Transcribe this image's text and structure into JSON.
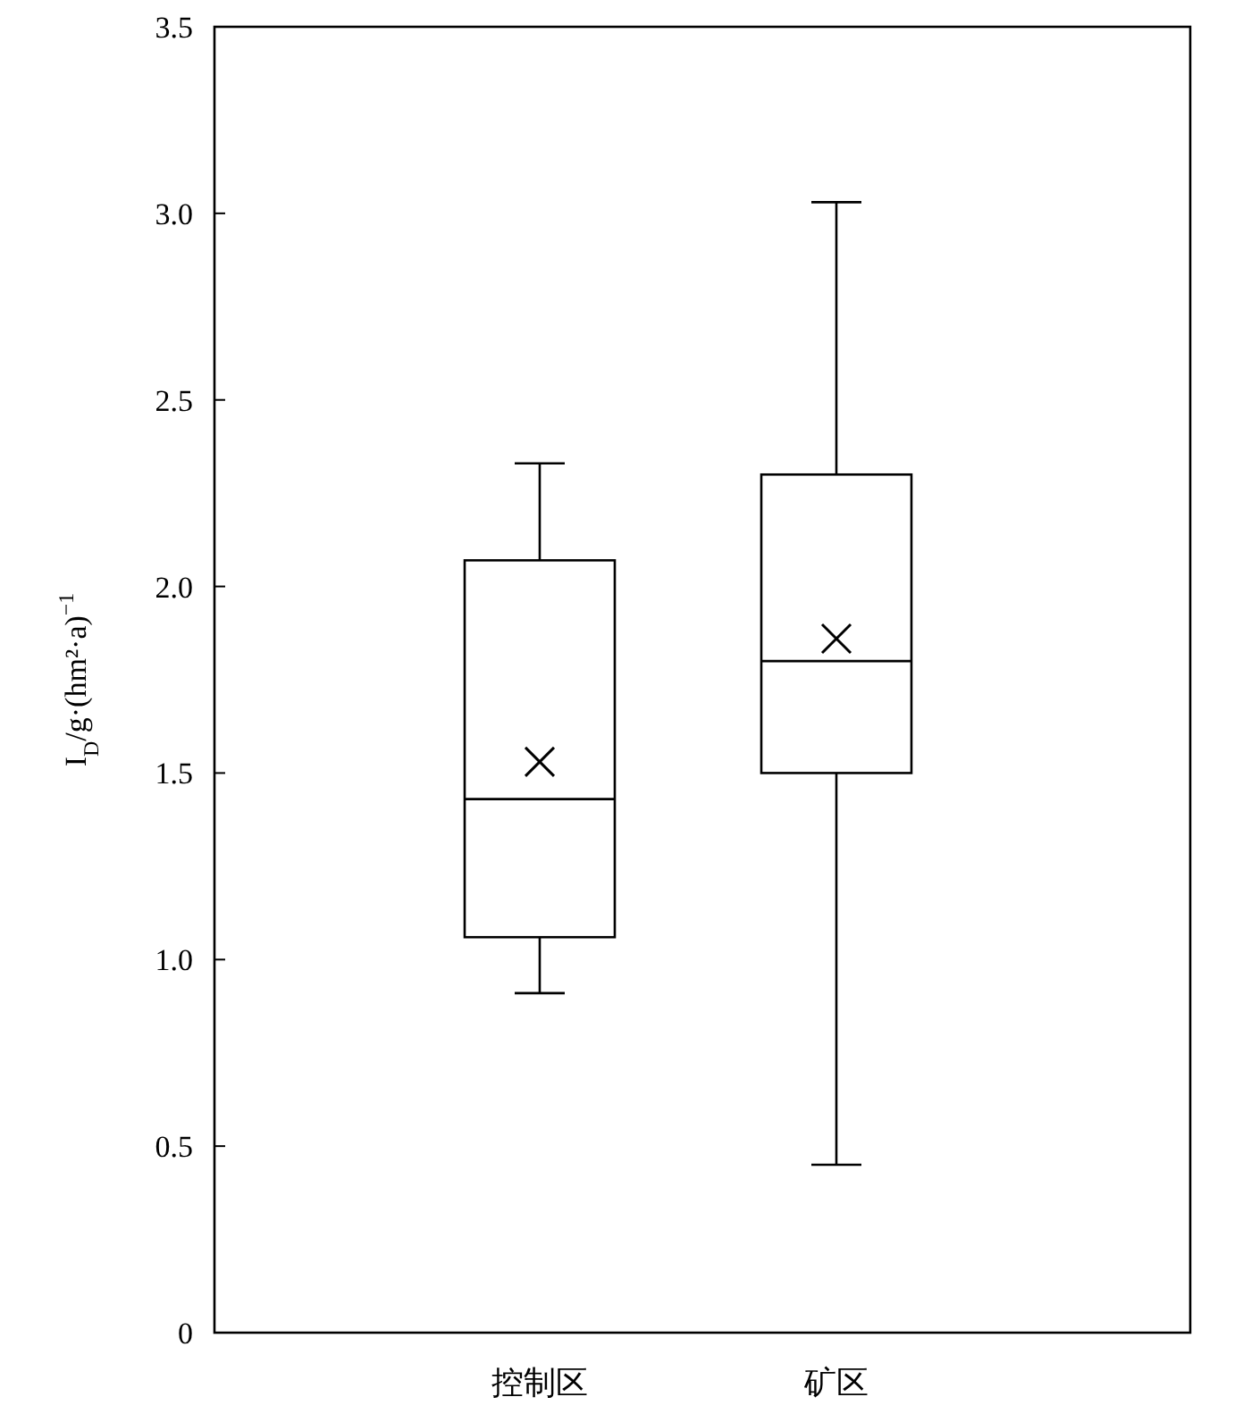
{
  "chart_data": {
    "type": "box",
    "ylabel": "I$_{D}$/g·(hm²·a)$^{−1}$",
    "categories": [
      "控制区",
      "矿区"
    ],
    "boxes": [
      {
        "low": 0.91,
        "q1": 1.06,
        "median": 1.43,
        "q3": 2.07,
        "high": 2.33,
        "mean": 1.53
      },
      {
        "low": 0.45,
        "q1": 1.5,
        "median": 1.8,
        "q3": 2.3,
        "high": 3.03,
        "mean": 1.86
      }
    ],
    "ylim": [
      0,
      3.5
    ],
    "yticks": [
      0,
      0.5,
      {
        "value": 1,
        "label": "1.0"
      },
      1.5,
      {
        "value": 2,
        "label": "2.0"
      },
      2.5,
      {
        "value": 3,
        "label": "3.0"
      },
      3.5
    ],
    "grid": false
  }
}
